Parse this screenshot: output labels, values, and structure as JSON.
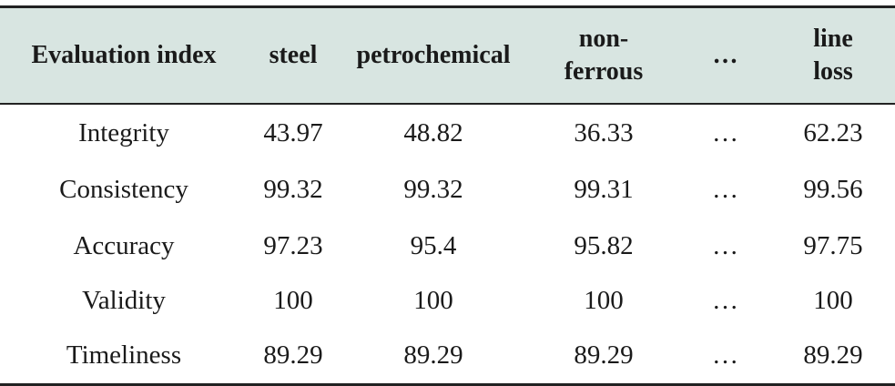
{
  "table": {
    "headers": [
      {
        "lines": [
          "Evaluation index"
        ]
      },
      {
        "lines": [
          "steel"
        ]
      },
      {
        "lines": [
          "petrochemical"
        ]
      },
      {
        "lines": [
          "non-",
          "ferrous"
        ]
      },
      {
        "lines": [
          "…"
        ]
      },
      {
        "lines": [
          "line",
          "loss"
        ]
      }
    ],
    "rows": [
      [
        "Integrity",
        "43.97",
        "48.82",
        "36.33",
        "…",
        "62.23"
      ],
      [
        "Consistency",
        "99.32",
        "99.32",
        "99.31",
        "…",
        "99.56"
      ],
      [
        "Accuracy",
        "97.23",
        "95.4",
        "95.82",
        "…",
        "97.75"
      ],
      [
        "Validity",
        "100",
        "100",
        "100",
        "…",
        "100"
      ],
      [
        "Timeliness",
        "89.29",
        "89.29",
        "89.29",
        "…",
        "89.29"
      ]
    ],
    "header_background": "#d8e5e1",
    "rule_color": "#222222"
  }
}
